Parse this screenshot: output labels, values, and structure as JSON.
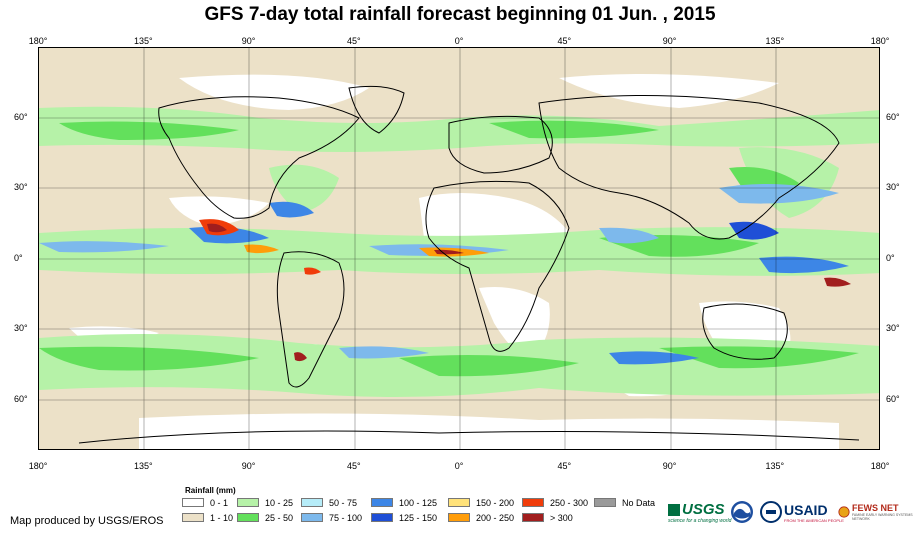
{
  "title": "GFS 7-day total rainfall forecast beginning 01 Jun. , 2015",
  "longitude_ticks": [
    "180°",
    "135°",
    "90°",
    "45°",
    "0°",
    "45°",
    "90°",
    "135°",
    "180°"
  ],
  "latitude_ticks": [
    "60°",
    "30°",
    "0°",
    "30°",
    "60°"
  ],
  "legend": {
    "title": "Rainfall (mm)",
    "items": [
      {
        "label": "0 - 1",
        "color": "#ffffff"
      },
      {
        "label": "1 - 10",
        "color": "#ece1c8"
      },
      {
        "label": "10 - 25",
        "color": "#b6f2a8"
      },
      {
        "label": "25 - 50",
        "color": "#63e05c"
      },
      {
        "label": "50 - 75",
        "color": "#b6ecf8"
      },
      {
        "label": "75 - 100",
        "color": "#7db9ec"
      },
      {
        "label": "100 - 125",
        "color": "#3d86e6"
      },
      {
        "label": "125 - 150",
        "color": "#1f4fd6"
      },
      {
        "label": "150 - 200",
        "color": "#ffe27a"
      },
      {
        "label": "200 - 250",
        "color": "#ff9d0a"
      },
      {
        "label": "250 - 300",
        "color": "#f03c0a"
      },
      {
        "label": "> 300",
        "color": "#a11e1e"
      },
      {
        "label": "No Data",
        "color": "#9a9a9a"
      }
    ]
  },
  "credit": "Map produced by USGS/EROS",
  "logos": {
    "usgs": "USGS",
    "usgs_tagline": "science for a changing world",
    "noaa_icon": "noaa-logo-icon",
    "usaid": "USAID",
    "usaid_tagline": "FROM THE AMERICAN PEOPLE",
    "fews": "FEWS NET",
    "fews_tagline": "FAMINE EARLY WARNING SYSTEMS NETWORK"
  }
}
